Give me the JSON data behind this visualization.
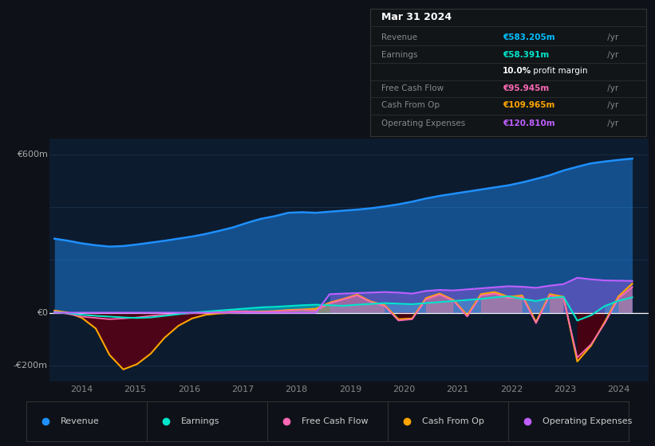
{
  "bg_color": "#0e1218",
  "plot_bg_color": "#0d1b2e",
  "ylabel_600": "€600m",
  "ylabel_0": "€0",
  "ylabel_neg200": "-€200m",
  "xlim": [
    2013.4,
    2024.55
  ],
  "ylim": [
    -260,
    660
  ],
  "colors": {
    "revenue": "#1e90ff",
    "earnings": "#00e5cc",
    "fcf": "#ff69b4",
    "cashfromop": "#ffa500",
    "opex": "#bf5fff"
  },
  "legend": [
    {
      "label": "Revenue",
      "color": "#1e90ff"
    },
    {
      "label": "Earnings",
      "color": "#00e5cc"
    },
    {
      "label": "Free Cash Flow",
      "color": "#ff69b4"
    },
    {
      "label": "Cash From Op",
      "color": "#ffa500"
    },
    {
      "label": "Operating Expenses",
      "color": "#bf5fff"
    }
  ],
  "infobox_bg": "#111518",
  "infobox_border": "#333333",
  "info_rows": [
    {
      "label": "Revenue",
      "value": "€583.205m",
      "suffix": " /yr",
      "color": "#00bfff"
    },
    {
      "label": "Earnings",
      "value": "€58.391m",
      "suffix": " /yr",
      "color": "#00e5cc"
    },
    {
      "label": "",
      "value": "10.0%",
      "suffix": " profit margin",
      "color": "pm"
    },
    {
      "label": "Free Cash Flow",
      "value": "€95.945m",
      "suffix": " /yr",
      "color": "#ff69b4"
    },
    {
      "label": "Cash From Op",
      "value": "€109.965m",
      "suffix": " /yr",
      "color": "#ffa500"
    },
    {
      "label": "Operating Expenses",
      "value": "€120.810m",
      "suffix": " /yr",
      "color": "#bf5fff"
    }
  ]
}
